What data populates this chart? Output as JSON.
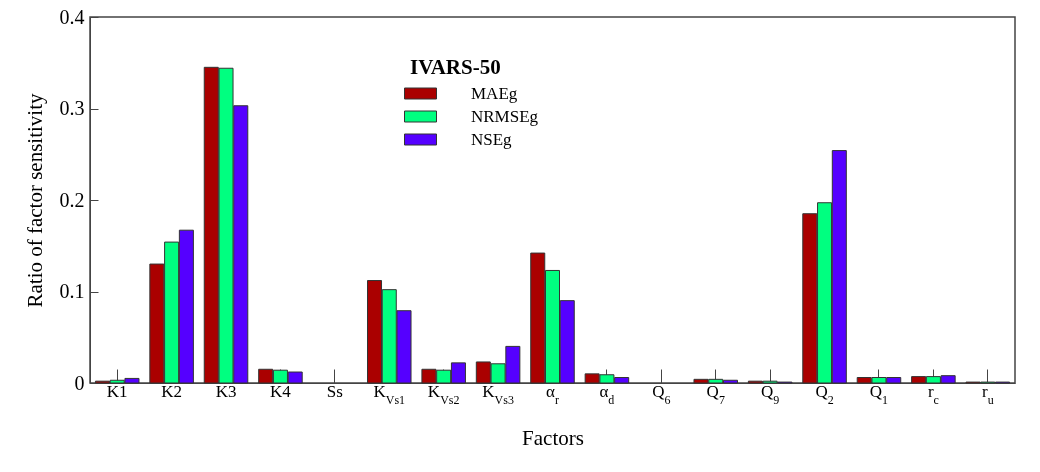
{
  "chart_data": {
    "type": "bar",
    "xlabel": "Factors",
    "ylabel": "Ratio of factor sensitivity",
    "legend_title": "IVARS-50",
    "categories": [
      "K1",
      "K2",
      "K3",
      "K4",
      "Ss",
      "K$_{Vs1}$",
      "K$_{Vs2}$",
      "K$_{Vs3}$",
      "α$_{r}$",
      "α$_{d}$",
      "Q$_{6}$",
      "Q$_{7}$",
      "Q$_{9}$",
      "Q$_{2}$",
      "Q$_{1}$",
      "r$_{c}$",
      "r$_{u}$"
    ],
    "series": [
      {
        "name": "MAEg",
        "color": "#aa0000",
        "values": [
          0.002,
          0.13,
          0.345,
          0.015,
          0,
          0.112,
          0.015,
          0.023,
          0.142,
          0.01,
          0,
          0.004,
          0.002,
          0.185,
          0.006,
          0.007,
          0.001
        ]
      },
      {
        "name": "NRMSEg",
        "color": "#00ff80",
        "values": [
          0.003,
          0.154,
          0.344,
          0.014,
          0,
          0.102,
          0.014,
          0.021,
          0.123,
          0.009,
          0,
          0.004,
          0.002,
          0.197,
          0.006,
          0.007,
          0.001
        ]
      },
      {
        "name": "NSEg",
        "color": "#5500ff",
        "values": [
          0.005,
          0.167,
          0.303,
          0.012,
          0,
          0.079,
          0.022,
          0.04,
          0.09,
          0.006,
          0,
          0.003,
          0.001,
          0.254,
          0.006,
          0.008,
          0.001
        ]
      }
    ],
    "ylim": [
      0,
      0.4
    ],
    "yticks": [
      0,
      0.1,
      0.2,
      0.3,
      0.4
    ],
    "grid": false,
    "legend": "top"
  }
}
